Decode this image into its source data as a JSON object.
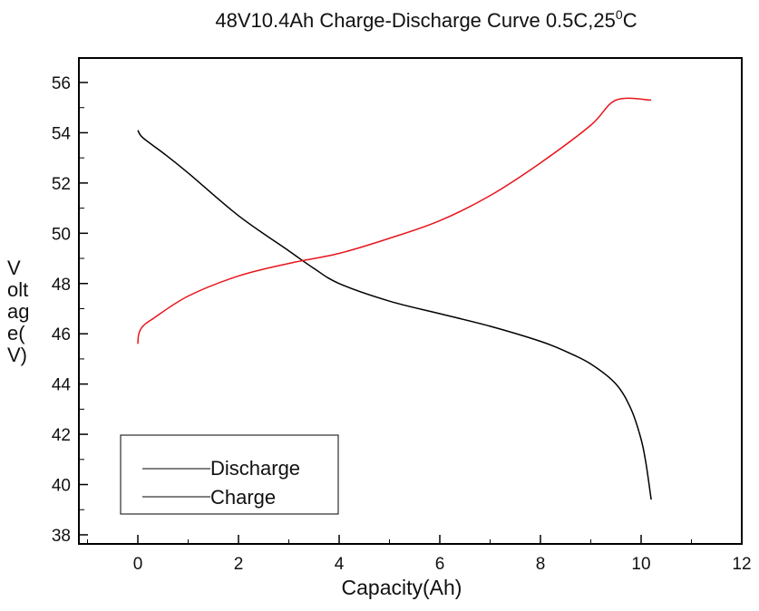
{
  "chart_data": {
    "type": "line",
    "title": "48V10.4Ah Charge-Discharge Curve  0.5C,25",
    "title_superscript": "0",
    "title_suffix": "C",
    "xlabel": "Capacity(Ah)",
    "ylabel_lines": [
      "V",
      "olt",
      "ag",
      "e(",
      "V)"
    ],
    "xlim": [
      -1.2,
      12
    ],
    "ylim": [
      37.6,
      57
    ],
    "xticks": [
      0,
      2,
      4,
      6,
      8,
      10,
      12
    ],
    "xtick_labels": [
      "0",
      "2",
      "4",
      "6",
      "8",
      "10",
      "12"
    ],
    "yticks": [
      38,
      40,
      42,
      44,
      46,
      48,
      50,
      52,
      54,
      56
    ],
    "ytick_labels": [
      "38",
      "40",
      "42",
      "44",
      "46",
      "48",
      "50",
      "52",
      "54",
      "56"
    ],
    "grid": false,
    "legend_placement": "bottom-left",
    "series": [
      {
        "name": "Discharge",
        "color": "#000000",
        "x": [
          0,
          0.1,
          0.5,
          1,
          2,
          3,
          3.5,
          4,
          5,
          6,
          7,
          8,
          8.5,
          9,
          9.5,
          9.8,
          10,
          10.1,
          10.2
        ],
        "y": [
          54.1,
          53.8,
          53.2,
          52.4,
          50.7,
          49.3,
          48.6,
          48.0,
          47.3,
          46.8,
          46.3,
          45.7,
          45.3,
          44.8,
          44.0,
          43.0,
          41.8,
          40.8,
          39.4
        ]
      },
      {
        "name": "Charge",
        "color": "#e8141c",
        "x": [
          0,
          0.02,
          0.1,
          0.3,
          1,
          2,
          3,
          4,
          5,
          6,
          7,
          8,
          9,
          9.5,
          10.2
        ],
        "y": [
          45.6,
          46.0,
          46.3,
          46.6,
          47.5,
          48.3,
          48.8,
          49.2,
          49.8,
          50.5,
          51.5,
          52.8,
          54.3,
          55.3,
          55.3
        ]
      }
    ],
    "legend_line_color": "#000000"
  }
}
